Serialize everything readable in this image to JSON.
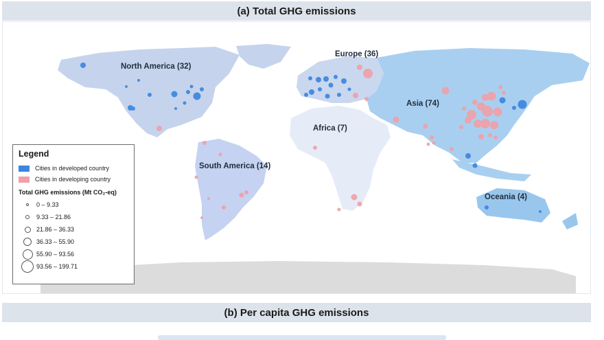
{
  "panel_a": {
    "title": "(a) Total GHG emissions"
  },
  "panel_b": {
    "title": "(b) Per capita GHG emissions"
  },
  "regions": [
    {
      "id": "north-america",
      "label": "North America (32)",
      "fill": "#c5d4ec"
    },
    {
      "id": "europe",
      "label": "Europe (36)",
      "fill": "#c9d7ef"
    },
    {
      "id": "asia",
      "label": "Asia (74)",
      "fill": "#a9cff0"
    },
    {
      "id": "africa",
      "label": "Africa (7)",
      "fill": "#e6ebf8"
    },
    {
      "id": "south-america",
      "label": "South America (14)",
      "fill": "#c6d2f1"
    },
    {
      "id": "oceania",
      "label": "Oceania (4)",
      "fill": "#99c6ec"
    }
  ],
  "legend": {
    "title": "Legend",
    "categories": [
      {
        "label": "Cities in developed country",
        "color": "#3d86e0"
      },
      {
        "label": "Cities in developing country",
        "color": "#f0a0a6"
      }
    ],
    "size_title": "Total GHG emissions (Mt CO₂-eq)",
    "size_classes": [
      {
        "label": "0 – 9.33",
        "radius": 2
      },
      {
        "label": "9.33 – 21.86",
        "radius": 3
      },
      {
        "label": "21.86 – 36.33",
        "radius": 4.5
      },
      {
        "label": "36.33 – 55.90",
        "radius": 6
      },
      {
        "label": "55.90 – 93.56",
        "radius": 7.5
      },
      {
        "label": "93.56 – 199.71",
        "radius": 9
      }
    ]
  },
  "colors": {
    "title_bar": "#dde3ea",
    "antarctica": "#dcdcdc",
    "developed": "#3d86e0",
    "developing": "#f0a0a6"
  }
}
